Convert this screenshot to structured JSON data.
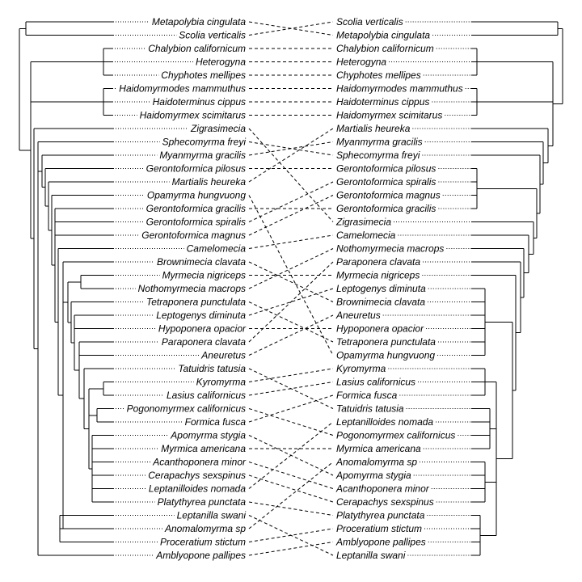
{
  "left_taxa": [
    "Metapolybia cingulata",
    "Scolia verticalis",
    "Chalybion californicum",
    "Heterogyna",
    "Chyphotes mellipes",
    "Haidomyrmodes mammuthus",
    "Haidoterminus cippus",
    "Haidomyrmex scimitarus",
    "Zigrasimecia",
    "Sphecomyrma freyi",
    "Myanmyrma gracilis",
    "Gerontoformica pilosus",
    "Martialis heureka",
    "Opamyrma hungvuong",
    "Gerontoformica gracilis",
    "Gerontoformica spiralis",
    "Gerontoformica magnus",
    "Camelomecia",
    "Brownimecia clavata",
    "Myrmecia nigriceps",
    "Nothomyrmecia macrops",
    "Tetraponera punctulata",
    "Leptogenys diminuta",
    "Hypoponera opacior",
    "Paraponera clavata",
    "Aneuretus",
    "Tatuidris tatusia",
    "Kyromyrma",
    "Lasius californicus",
    "Pogonomyrmex californicus",
    "Formica fusca",
    "Apomyrma stygia",
    "Myrmica americana",
    "Acanthoponera minor",
    "Cerapachys sexspinus",
    "Leptanilloides nomada",
    "Platythyrea punctata",
    "Leptanilla swani",
    "Anomalomyrma sp",
    "Proceratium stictum",
    "Amblyopone pallipes"
  ],
  "right_taxa": [
    "Scolia verticalis",
    "Metapolybia cingulata",
    "Chalybion californicum",
    "Heterogyna",
    "Chyphotes mellipes",
    "Haidomyrmodes mammuthus",
    "Haidoterminus cippus",
    "Haidomyrmex scimitarus",
    "Martialis heureka",
    "Myanmyrma gracilis",
    "Sphecomyrma freyi",
    "Gerontoformica pilosus",
    "Gerontoformica spiralis",
    "Gerontoformica magnus",
    "Gerontoformica gracilis",
    "Zigrasimecia",
    "Camelomecia",
    "Nothomyrmecia macrops",
    "Paraponera clavata",
    "Myrmecia nigriceps",
    "Leptogenys diminuta",
    "Brownimecia clavata",
    "Aneuretus",
    "Hypoponera opacior",
    "Tetraponera punctulata",
    "Opamyrma hungvuong",
    "Kyromyrma",
    "Lasius californicus",
    "Formica fusca",
    "Tatuidris tatusia",
    "Leptanilloides nomada",
    "Pogonomyrmex californicus",
    "Myrmica americana",
    "Anomalomyrma sp",
    "Apomyrma stygia",
    "Acanthoponera minor",
    "Cerapachys sexspinus",
    "Platythyrea punctata",
    "Proceratium stictum",
    "Amblyopone pallipes",
    "Leptanilla swani"
  ]
}
